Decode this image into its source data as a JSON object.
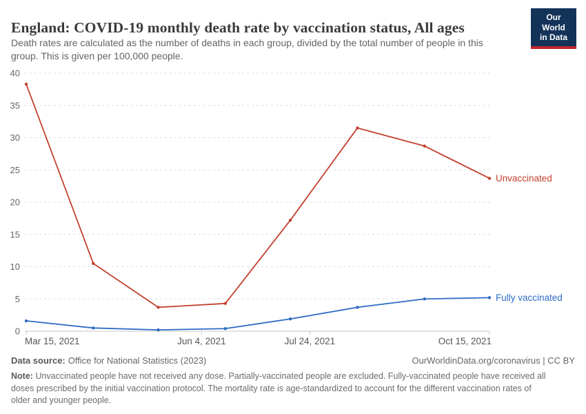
{
  "header": {
    "title": "England: COVID-19 monthly death rate by vaccination status, All ages",
    "subtitle_lines": [
      "Death rates are calculated as the number of deaths in each group, divided by the total number of people in this",
      "group. This is given per 100,000 people."
    ],
    "logo": {
      "line1": "Our World",
      "line2": "in Data",
      "bg_color": "#143359",
      "stripe_color": "#c5262c"
    }
  },
  "chart_data": {
    "type": "line",
    "title": "England: COVID-19 monthly death rate by vaccination status, All ages",
    "xlabel": "",
    "ylabel": "",
    "ylim": [
      0,
      40
    ],
    "ytick_step": 5,
    "grid": "dashed-horizontal",
    "legend_position": "line-end-labels",
    "x_total_days": 214,
    "x_dates": [
      "Mar 15, 2021",
      "Apr 15, 2021",
      "May 15, 2021",
      "Jun 15, 2021",
      "Jul 15, 2021",
      "Aug 15, 2021",
      "Sep 15, 2021",
      "Oct 15, 2021"
    ],
    "x_days": [
      0,
      31,
      61,
      92,
      122,
      153,
      184,
      214
    ],
    "x_ticks": [
      {
        "label": "Mar 15, 2021",
        "day": 0
      },
      {
        "label": "Jun 4, 2021",
        "day": 81
      },
      {
        "label": "Jul 24, 2021",
        "day": 131
      },
      {
        "label": "Oct 15, 2021",
        "day": 214
      }
    ],
    "series": [
      {
        "name": "Unvaccinated",
        "color": "#c2402e",
        "values": [
          38.3,
          10.5,
          3.7,
          4.3,
          17.2,
          31.5,
          28.7,
          23.7
        ]
      },
      {
        "name": "Fully vaccinated",
        "color": "#2d6bc4",
        "values": [
          1.6,
          0.5,
          0.2,
          0.4,
          1.9,
          3.7,
          5.0,
          5.2
        ]
      }
    ],
    "colors": {
      "grid": "#dcdcdc",
      "axis": "#c4c4c4",
      "y_tick_text": "#666666",
      "x_tick_text": "#565656"
    }
  },
  "footer": {
    "source_label": "Data source:",
    "source_value": "Office for National Statistics (2023)",
    "citation": "OurWorldinData.org/coronavirus | CC BY",
    "note_label": "Note:",
    "note_lines": [
      "Unvaccinated people have not received any dose. Partially-vaccinated people are excluded. Fully-vaccinated people have received all",
      "doses prescribed by the initial vaccination protocol. The mortality rate is age-standardized to account for the different vaccination rates of",
      "older and younger people."
    ]
  }
}
